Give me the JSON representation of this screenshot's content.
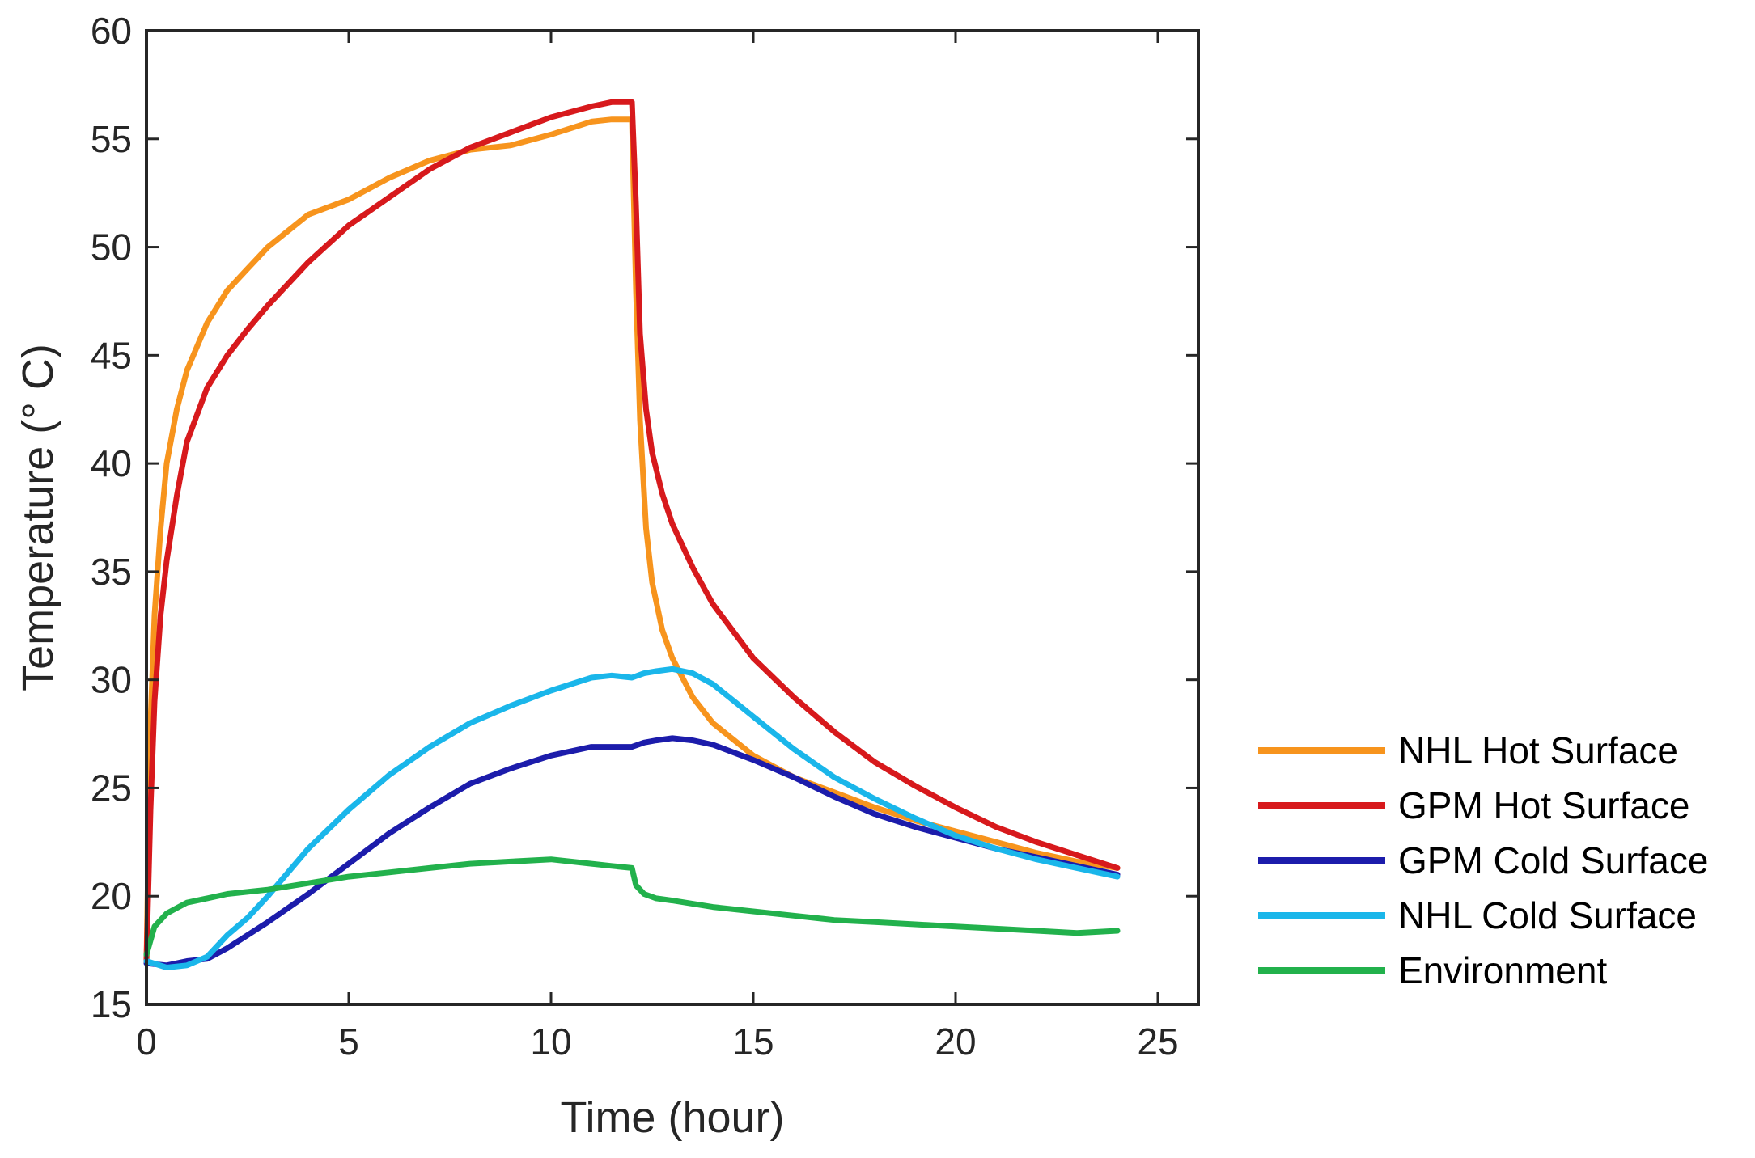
{
  "chart_data": {
    "type": "line",
    "title": "",
    "xlabel": "Time (hour)",
    "ylabel": "Temperature (° C)",
    "xlim": [
      0,
      26
    ],
    "ylim": [
      15,
      60
    ],
    "xticks": [
      0,
      5,
      10,
      15,
      20,
      25
    ],
    "yticks": [
      15,
      20,
      25,
      30,
      35,
      40,
      45,
      50,
      55,
      60
    ],
    "grid": false,
    "legend_position": "outside-right",
    "series": [
      {
        "name": "NHL Hot Surface",
        "color": "#f7941d",
        "x": [
          0,
          0.1,
          0.2,
          0.35,
          0.5,
          0.75,
          1,
          1.5,
          2,
          2.5,
          3,
          4,
          5,
          6,
          7,
          8,
          9,
          10,
          11,
          11.5,
          12,
          12.1,
          12.2,
          12.35,
          12.5,
          12.75,
          13,
          13.5,
          14,
          15,
          16,
          17,
          18,
          19,
          20,
          21,
          22,
          23,
          24
        ],
        "y": [
          17,
          28,
          33,
          37,
          40,
          42.5,
          44.3,
          46.5,
          48,
          49,
          50,
          51.5,
          52.2,
          53.2,
          54,
          54.5,
          54.7,
          55.2,
          55.8,
          55.9,
          55.9,
          48,
          42,
          37,
          34.5,
          32.3,
          31,
          29.2,
          28,
          26.5,
          25.5,
          24.8,
          24.1,
          23.5,
          23,
          22.5,
          22,
          21.6,
          21.3
        ]
      },
      {
        "name": "GPM Hot Surface",
        "color": "#d7191c",
        "x": [
          0,
          0.1,
          0.2,
          0.35,
          0.5,
          0.75,
          1,
          1.5,
          2,
          2.5,
          3,
          4,
          5,
          6,
          7,
          8,
          9,
          10,
          11,
          11.5,
          12,
          12.1,
          12.2,
          12.35,
          12.5,
          12.75,
          13,
          13.5,
          14,
          15,
          16,
          17,
          18,
          19,
          20,
          21,
          22,
          23,
          24
        ],
        "y": [
          17,
          24,
          29,
          33,
          35.5,
          38.5,
          41,
          43.5,
          45,
          46.2,
          47.3,
          49.3,
          51,
          52.3,
          53.6,
          54.6,
          55.3,
          56,
          56.5,
          56.7,
          56.7,
          52,
          46,
          42.5,
          40.5,
          38.6,
          37.2,
          35.2,
          33.5,
          31,
          29.2,
          27.6,
          26.2,
          25.1,
          24.1,
          23.2,
          22.5,
          21.9,
          21.3
        ]
      },
      {
        "name": "GPM Cold Surface",
        "color": "#1c1cab",
        "x": [
          0,
          0.5,
          1,
          1.5,
          2,
          3,
          4,
          5,
          6,
          7,
          8,
          9,
          10,
          11,
          11.5,
          12,
          12.3,
          12.6,
          13,
          13.5,
          14,
          15,
          16,
          17,
          18,
          19,
          20,
          21,
          22,
          23,
          24
        ],
        "y": [
          16.9,
          16.8,
          17,
          17.1,
          17.6,
          18.8,
          20.1,
          21.5,
          22.9,
          24.1,
          25.2,
          25.9,
          26.5,
          26.9,
          26.9,
          26.9,
          27.1,
          27.2,
          27.3,
          27.2,
          27,
          26.3,
          25.5,
          24.6,
          23.8,
          23.2,
          22.7,
          22.2,
          21.8,
          21.4,
          21
        ]
      },
      {
        "name": "NHL Cold Surface",
        "color": "#1ab6ea",
        "x": [
          0,
          0.5,
          1,
          1.5,
          2,
          2.5,
          3,
          4,
          5,
          6,
          7,
          8,
          9,
          10,
          11,
          11.5,
          12,
          12.3,
          12.6,
          13,
          13.5,
          14,
          15,
          16,
          17,
          18,
          19,
          20,
          21,
          22,
          23,
          24
        ],
        "y": [
          17,
          16.7,
          16.8,
          17.2,
          18.2,
          19,
          20,
          22.2,
          24,
          25.6,
          26.9,
          28,
          28.8,
          29.5,
          30.1,
          30.2,
          30.1,
          30.3,
          30.4,
          30.5,
          30.3,
          29.8,
          28.3,
          26.8,
          25.5,
          24.5,
          23.6,
          22.8,
          22.2,
          21.7,
          21.3,
          20.9
        ]
      },
      {
        "name": "Environment",
        "color": "#22b14c",
        "x": [
          0,
          0.2,
          0.5,
          1,
          1.5,
          2,
          3,
          4,
          5,
          6,
          7,
          8,
          9,
          10,
          11,
          11.5,
          12,
          12.1,
          12.3,
          12.6,
          13,
          14,
          15,
          16,
          17,
          18,
          19,
          20,
          21,
          22,
          23,
          24
        ],
        "y": [
          17.3,
          18.6,
          19.2,
          19.7,
          19.9,
          20.1,
          20.3,
          20.6,
          20.9,
          21.1,
          21.3,
          21.5,
          21.6,
          21.7,
          21.5,
          21.4,
          21.3,
          20.5,
          20.1,
          19.9,
          19.8,
          19.5,
          19.3,
          19.1,
          18.9,
          18.8,
          18.7,
          18.6,
          18.5,
          18.4,
          18.3,
          18.4
        ]
      }
    ]
  }
}
